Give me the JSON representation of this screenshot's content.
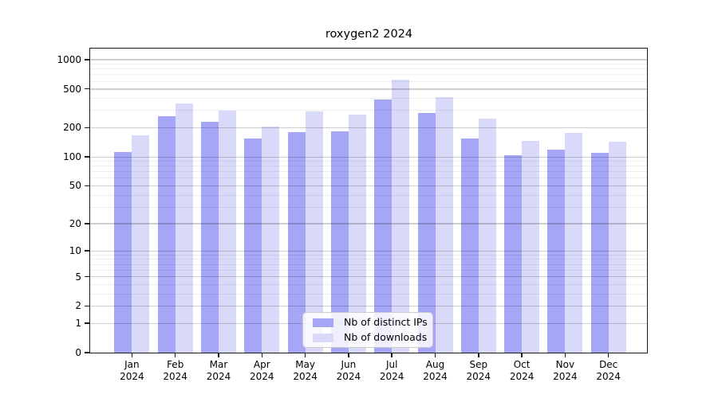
{
  "title": "roxygen2 2024",
  "chart_data": {
    "type": "bar",
    "title": "roxygen2 2024",
    "categories": [
      "Jan 2024",
      "Feb 2024",
      "Mar 2024",
      "Apr 2024",
      "May 2024",
      "Jun 2024",
      "Jul 2024",
      "Aug 2024",
      "Sep 2024",
      "Oct 2024",
      "Nov 2024",
      "Dec 2024"
    ],
    "series": [
      {
        "name": "Nb of distinct IPs",
        "color": "#a6a6f7",
        "values": [
          113,
          262,
          230,
          155,
          180,
          185,
          392,
          283,
          154,
          105,
          119,
          111
        ]
      },
      {
        "name": "Nb of downloads",
        "color": "#d9d9fa",
        "values": [
          166,
          355,
          298,
          206,
          294,
          270,
          623,
          410,
          250,
          147,
          178,
          144
        ]
      }
    ],
    "xlabel": "",
    "ylabel": "",
    "yscale": "log10(value+1)",
    "ylim": [
      0,
      1070
    ],
    "yticks": [
      0,
      1,
      2,
      5,
      10,
      20,
      50,
      100,
      200,
      500,
      1000
    ],
    "yminorticks": [
      3,
      4,
      6,
      7,
      8,
      9,
      30,
      40,
      60,
      70,
      80,
      90,
      300,
      400,
      600,
      700,
      800,
      900
    ],
    "grid": "horizontal, majors and log minors, drawn over bars",
    "legend_position": "inside bottom-center"
  },
  "legend": {
    "items": [
      {
        "label": "Nb of distinct IPs",
        "color": "#a6a6f7"
      },
      {
        "label": "Nb of downloads",
        "color": "#d9d9fa"
      }
    ]
  }
}
